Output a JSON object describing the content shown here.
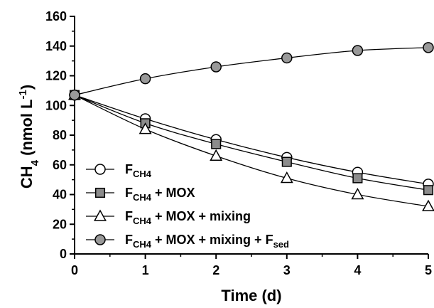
{
  "chart_data": {
    "type": "line",
    "title": "",
    "xlabel": "Time (d)",
    "ylabel": {
      "main": "CH",
      "main_sub": "4",
      "unit": " (nmol L",
      "unit_sup": "-1",
      "close": ")"
    },
    "xlim": [
      0,
      5
    ],
    "ylim": [
      0,
      160
    ],
    "x_ticks": [
      0,
      1,
      2,
      3,
      4,
      5
    ],
    "y_ticks": [
      0,
      20,
      40,
      60,
      80,
      100,
      120,
      140,
      160
    ],
    "grid": false,
    "legend_position": "bottom-left",
    "x": [
      0,
      1,
      2,
      3,
      4,
      5
    ],
    "series": [
      {
        "name": "F",
        "name_sub": "CH4",
        "name_rest": "",
        "name_rest_sub": "",
        "marker": "circle",
        "fill": "#ffffff",
        "values": [
          107,
          91,
          77,
          65,
          55,
          47
        ]
      },
      {
        "name": "F",
        "name_sub": "CH4",
        "name_rest": " + MOX",
        "name_rest_sub": "",
        "marker": "square",
        "fill": "#8c8c8c",
        "values": [
          107,
          88,
          74,
          62,
          51,
          43
        ]
      },
      {
        "name": "F",
        "name_sub": "CH4",
        "name_rest": " + MOX + mixing",
        "name_rest_sub": "",
        "marker": "triangle",
        "fill": "#ffffff",
        "values": [
          107,
          84,
          66,
          51,
          40,
          32
        ]
      },
      {
        "name": "F",
        "name_sub": "CH4",
        "name_rest": " + MOX + mixing + F",
        "name_rest_sub": "sed",
        "marker": "circle",
        "fill": "#999999",
        "values": [
          107,
          118,
          126,
          132,
          137,
          139
        ]
      }
    ]
  }
}
